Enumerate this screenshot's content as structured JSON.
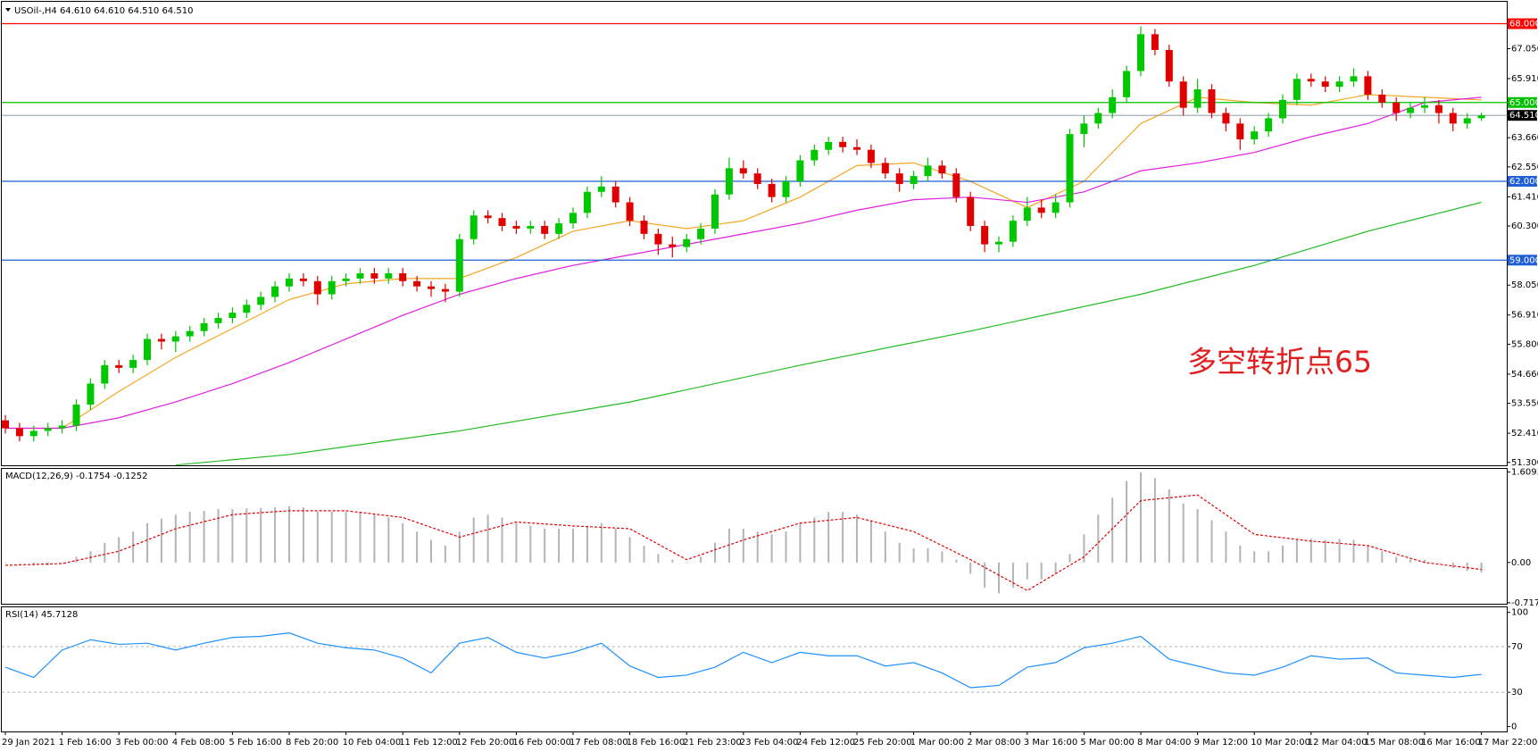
{
  "chart_data": [
    {
      "type": "candlestick",
      "title": "USOil-,H4  64.610 64.610 64.510 64.510",
      "annotation": "多空转折点65",
      "up_color": "#00c800",
      "down_color": "#e00000",
      "categories": [
        "29 Jan 2021",
        null,
        null,
        null,
        "1 Feb 16:00",
        null,
        null,
        null,
        "3 Feb 00:00",
        null,
        null,
        null,
        "4 Feb 08:00",
        null,
        null,
        null,
        "5 Feb 16:00",
        null,
        null,
        null,
        "8 Feb 20:00",
        null,
        null,
        null,
        "10 Feb 04:00",
        null,
        null,
        null,
        "11 Feb 12:00",
        null,
        null,
        null,
        "12 Feb 20:00",
        null,
        null,
        null,
        "16 Feb 00:00",
        null,
        null,
        null,
        "17 Feb 08:00",
        null,
        null,
        null,
        "18 Feb 16:00",
        null,
        null,
        null,
        "21 Feb 23:00",
        null,
        null,
        null,
        "23 Feb 04:00",
        null,
        null,
        null,
        "24 Feb 12:00",
        null,
        null,
        null,
        "25 Feb 20:00",
        null,
        null,
        null,
        "1 Mar 00:00",
        null,
        null,
        null,
        "2 Mar 08:00",
        null,
        null,
        null,
        "3 Mar 16:00",
        null,
        null,
        null,
        "5 Mar 00:00",
        null,
        null,
        null,
        "8 Mar 04:00",
        null,
        null,
        null,
        "9 Mar 12:00",
        null,
        null,
        null,
        "10 Mar 20:00",
        null,
        null,
        null,
        "12 Mar 04:00",
        null,
        null,
        null,
        "15 Mar 08:00",
        null,
        null,
        null,
        "16 Mar 16:00",
        null,
        null,
        null,
        "17 Mar 22:00"
      ],
      "ohlc": [
        [
          52.9,
          53.1,
          52.4,
          52.6
        ],
        [
          52.6,
          52.8,
          52.1,
          52.3
        ],
        [
          52.3,
          52.7,
          52.1,
          52.5
        ],
        [
          52.5,
          52.8,
          52.3,
          52.6
        ],
        [
          52.6,
          52.9,
          52.4,
          52.7
        ],
        [
          52.7,
          53.7,
          52.5,
          53.5
        ],
        [
          53.5,
          54.5,
          53.3,
          54.3
        ],
        [
          54.3,
          55.2,
          54.1,
          55.0
        ],
        [
          55.0,
          55.2,
          54.7,
          54.9
        ],
        [
          54.9,
          55.4,
          54.7,
          55.2
        ],
        [
          55.2,
          56.2,
          55.0,
          56.0
        ],
        [
          56.0,
          56.2,
          55.6,
          55.9
        ],
        [
          55.9,
          56.3,
          55.5,
          56.1
        ],
        [
          56.1,
          56.5,
          55.9,
          56.3
        ],
        [
          56.3,
          56.8,
          56.1,
          56.6
        ],
        [
          56.6,
          57.0,
          56.4,
          56.8
        ],
        [
          56.8,
          57.2,
          56.6,
          57.0
        ],
        [
          57.0,
          57.5,
          56.8,
          57.3
        ],
        [
          57.3,
          57.8,
          57.1,
          57.6
        ],
        [
          57.6,
          58.2,
          57.4,
          58.0
        ],
        [
          58.0,
          58.5,
          57.8,
          58.3
        ],
        [
          58.3,
          58.5,
          58.0,
          58.2
        ],
        [
          58.2,
          58.4,
          57.3,
          57.7
        ],
        [
          57.7,
          58.4,
          57.5,
          58.2
        ],
        [
          58.2,
          58.5,
          58.0,
          58.3
        ],
        [
          58.3,
          58.7,
          58.1,
          58.5
        ],
        [
          58.5,
          58.7,
          58.1,
          58.3
        ],
        [
          58.3,
          58.7,
          58.1,
          58.5
        ],
        [
          58.5,
          58.7,
          58.0,
          58.2
        ],
        [
          58.2,
          58.4,
          57.8,
          58.0
        ],
        [
          58.0,
          58.2,
          57.6,
          57.9
        ],
        [
          57.9,
          58.1,
          57.4,
          57.8
        ],
        [
          57.8,
          60.0,
          57.6,
          59.8
        ],
        [
          59.8,
          60.9,
          59.6,
          60.7
        ],
        [
          60.7,
          60.9,
          60.4,
          60.6
        ],
        [
          60.6,
          60.8,
          60.1,
          60.3
        ],
        [
          60.3,
          60.5,
          60.0,
          60.2
        ],
        [
          60.2,
          60.5,
          60.0,
          60.3
        ],
        [
          60.3,
          60.5,
          59.8,
          60.0
        ],
        [
          60.0,
          60.6,
          59.8,
          60.4
        ],
        [
          60.4,
          61.0,
          60.2,
          60.8
        ],
        [
          60.8,
          61.8,
          60.6,
          61.6
        ],
        [
          61.6,
          62.2,
          61.4,
          61.8
        ],
        [
          61.8,
          62.0,
          61.0,
          61.2
        ],
        [
          61.2,
          61.4,
          60.3,
          60.5
        ],
        [
          60.5,
          60.7,
          59.8,
          60.0
        ],
        [
          60.0,
          60.2,
          59.2,
          59.6
        ],
        [
          59.6,
          59.9,
          59.1,
          59.5
        ],
        [
          59.5,
          60.0,
          59.3,
          59.8
        ],
        [
          59.8,
          60.4,
          59.6,
          60.2
        ],
        [
          60.2,
          61.7,
          60.0,
          61.5
        ],
        [
          61.5,
          62.9,
          61.3,
          62.5
        ],
        [
          62.5,
          62.8,
          62.1,
          62.3
        ],
        [
          62.3,
          62.5,
          61.7,
          61.9
        ],
        [
          61.9,
          62.1,
          61.2,
          61.4
        ],
        [
          61.4,
          62.2,
          61.2,
          62.0
        ],
        [
          62.0,
          63.0,
          61.8,
          62.8
        ],
        [
          62.8,
          63.4,
          62.6,
          63.2
        ],
        [
          63.2,
          63.7,
          63.0,
          63.5
        ],
        [
          63.5,
          63.7,
          63.1,
          63.3
        ],
        [
          63.3,
          63.6,
          63.0,
          63.2
        ],
        [
          63.2,
          63.4,
          62.5,
          62.7
        ],
        [
          62.7,
          62.9,
          62.1,
          62.3
        ],
        [
          62.3,
          62.5,
          61.6,
          61.9
        ],
        [
          61.9,
          62.4,
          61.7,
          62.2
        ],
        [
          62.2,
          62.9,
          62.0,
          62.6
        ],
        [
          62.6,
          62.8,
          62.1,
          62.3
        ],
        [
          62.3,
          62.5,
          61.2,
          61.4
        ],
        [
          61.4,
          61.6,
          60.1,
          60.3
        ],
        [
          60.3,
          60.5,
          59.3,
          59.6
        ],
        [
          59.6,
          59.9,
          59.3,
          59.7
        ],
        [
          59.7,
          60.7,
          59.5,
          60.5
        ],
        [
          60.5,
          61.4,
          60.3,
          61.0
        ],
        [
          61.0,
          61.3,
          60.6,
          60.8
        ],
        [
          60.8,
          61.5,
          60.6,
          61.2
        ],
        [
          61.2,
          64.0,
          61.0,
          63.8
        ],
        [
          63.8,
          64.5,
          63.3,
          64.2
        ],
        [
          64.2,
          64.8,
          64.0,
          64.6
        ],
        [
          64.6,
          65.5,
          64.4,
          65.2
        ],
        [
          65.2,
          66.4,
          65.0,
          66.2
        ],
        [
          66.2,
          67.9,
          66.0,
          67.6
        ],
        [
          67.6,
          67.8,
          66.8,
          67.0
        ],
        [
          67.0,
          67.2,
          65.6,
          65.8
        ],
        [
          65.8,
          66.0,
          64.5,
          64.8
        ],
        [
          64.8,
          65.9,
          64.6,
          65.5
        ],
        [
          65.5,
          65.7,
          64.4,
          64.6
        ],
        [
          64.6,
          64.8,
          63.9,
          64.2
        ],
        [
          64.2,
          64.4,
          63.2,
          63.6
        ],
        [
          63.6,
          64.1,
          63.4,
          63.9
        ],
        [
          63.9,
          64.6,
          63.7,
          64.4
        ],
        [
          64.4,
          65.3,
          64.2,
          65.1
        ],
        [
          65.1,
          66.1,
          64.9,
          65.9
        ],
        [
          65.9,
          66.1,
          65.6,
          65.8
        ],
        [
          65.8,
          66.0,
          65.4,
          65.6
        ],
        [
          65.6,
          66.0,
          65.4,
          65.8
        ],
        [
          65.8,
          66.3,
          65.6,
          66.0
        ],
        [
          66.0,
          66.2,
          65.1,
          65.3
        ],
        [
          65.3,
          65.5,
          64.8,
          65.0
        ],
        [
          65.0,
          65.2,
          64.3,
          64.6
        ],
        [
          64.6,
          65.0,
          64.4,
          64.8
        ],
        [
          64.8,
          65.2,
          64.6,
          64.9
        ],
        [
          64.9,
          65.1,
          64.2,
          64.6
        ],
        [
          64.6,
          64.8,
          63.9,
          64.2
        ],
        [
          64.2,
          64.6,
          64.0,
          64.4
        ],
        [
          64.4,
          64.61,
          64.3,
          64.51
        ]
      ],
      "lines": [
        {
          "color": "#f5a623",
          "x": [
            0,
            4,
            8,
            12,
            16,
            20,
            24,
            28,
            32,
            36,
            40,
            44,
            48,
            52,
            56,
            60,
            64,
            68,
            72,
            76,
            80,
            84,
            88,
            92,
            96,
            100,
            104
          ],
          "values": [
            52.6,
            52.6,
            54.0,
            55.3,
            56.4,
            57.5,
            58.1,
            58.3,
            58.3,
            59.1,
            60.1,
            60.5,
            60.2,
            60.5,
            61.4,
            62.6,
            62.7,
            62.0,
            61.0,
            62.0,
            64.2,
            65.2,
            65.0,
            64.9,
            65.3,
            65.2,
            65.1
          ]
        },
        {
          "color": "#e020e0",
          "x": [
            0,
            4,
            8,
            12,
            16,
            20,
            24,
            28,
            32,
            36,
            40,
            44,
            48,
            52,
            56,
            60,
            64,
            68,
            72,
            76,
            80,
            84,
            88,
            92,
            96,
            100,
            104
          ],
          "values": [
            52.6,
            52.6,
            53.0,
            53.6,
            54.3,
            55.1,
            56.0,
            56.9,
            57.7,
            58.3,
            58.8,
            59.2,
            59.6,
            60.0,
            60.4,
            60.9,
            61.3,
            61.4,
            61.2,
            61.6,
            62.4,
            62.7,
            63.1,
            63.7,
            64.2,
            65.0,
            65.2
          ]
        },
        {
          "color": "#22bb22",
          "x": [
            12,
            20,
            32,
            44,
            56,
            68,
            80,
            88,
            96,
            104
          ],
          "values": [
            51.2,
            51.6,
            52.5,
            53.6,
            55.0,
            56.3,
            57.7,
            58.8,
            60.1,
            61.2
          ]
        }
      ],
      "levels": [
        {
          "value": 68,
          "label": "68.000",
          "color": "#ff0000"
        },
        {
          "value": 65,
          "label": "65.000",
          "color": "#00c000"
        },
        {
          "value": 62,
          "label": "62.000",
          "color": "#1f5fd6"
        },
        {
          "value": 59,
          "label": "59.000",
          "color": "#1f5fd6"
        }
      ],
      "last": {
        "value": 64.51,
        "label": "64.510"
      },
      "ylim": [
        51.19,
        68.8
      ],
      "yticks": [
        {
          "value": 67.05,
          "label": "67.050"
        },
        {
          "value": 65.91,
          "label": "65.910"
        },
        {
          "value": 63.66,
          "label": "63.660"
        },
        {
          "value": 62.55,
          "label": "62.550"
        },
        {
          "value": 61.41,
          "label": "61.410"
        },
        {
          "value": 60.3,
          "label": "60.300"
        },
        {
          "value": 58.05,
          "label": "58.050"
        },
        {
          "value": 56.91,
          "label": "56.910"
        },
        {
          "value": 55.8,
          "label": "55.800"
        },
        {
          "value": 54.66,
          "label": "54.660"
        },
        {
          "value": 53.55,
          "label": "53.550"
        },
        {
          "value": 52.41,
          "label": "52.410"
        },
        {
          "value": 51.3,
          "label": "51.300"
        }
      ]
    },
    {
      "type": "macd",
      "title": "MACD(12,26,9) -0.1754 -0.1252",
      "histogram_color": "#b4b4b4",
      "signal_color": "#e00000",
      "values": [
        0.0,
        0.0,
        -0.05,
        -0.05,
        0.0,
        0.1,
        0.2,
        0.35,
        0.45,
        0.55,
        0.7,
        0.78,
        0.85,
        0.9,
        0.92,
        0.95,
        0.95,
        0.96,
        0.97,
        0.98,
        1.0,
        0.98,
        0.9,
        0.9,
        0.9,
        0.9,
        0.85,
        0.8,
        0.7,
        0.55,
        0.4,
        0.3,
        0.55,
        0.8,
        0.85,
        0.8,
        0.7,
        0.65,
        0.6,
        0.6,
        0.6,
        0.65,
        0.7,
        0.6,
        0.45,
        0.3,
        0.15,
        0.05,
        0.0,
        0.1,
        0.35,
        0.6,
        0.6,
        0.55,
        0.5,
        0.55,
        0.7,
        0.8,
        0.9,
        0.9,
        0.85,
        0.75,
        0.55,
        0.35,
        0.25,
        0.25,
        0.2,
        0.05,
        -0.2,
        -0.45,
        -0.55,
        -0.45,
        -0.3,
        -0.3,
        -0.2,
        0.15,
        0.5,
        0.85,
        1.15,
        1.45,
        1.6,
        1.5,
        1.3,
        1.05,
        0.95,
        0.75,
        0.55,
        0.3,
        0.2,
        0.2,
        0.3,
        0.42,
        0.42,
        0.4,
        0.42,
        0.4,
        0.3,
        0.2,
        0.1,
        0.05,
        0.05,
        0.0,
        -0.1,
        -0.15,
        -0.1754
      ],
      "signal_x": [
        0,
        4,
        8,
        12,
        16,
        20,
        24,
        28,
        32,
        36,
        40,
        44,
        48,
        52,
        56,
        60,
        64,
        68,
        72,
        76,
        80,
        84,
        88,
        92,
        96,
        100,
        104
      ],
      "signal": [
        -0.05,
        -0.02,
        0.2,
        0.6,
        0.85,
        0.92,
        0.92,
        0.8,
        0.45,
        0.72,
        0.65,
        0.6,
        0.05,
        0.4,
        0.7,
        0.8,
        0.55,
        0.05,
        -0.5,
        0.1,
        1.1,
        1.2,
        0.5,
        0.38,
        0.3,
        0.0,
        -0.1252
      ],
      "ylim": [
        -0.734,
        1.68
      ],
      "yticks": [
        1.6093,
        {
          "value": 0,
          "label": "0.00"
        },
        -0.7172
      ]
    },
    {
      "type": "line",
      "title": "RSI(14) 45.7128",
      "color": "#1e90ff",
      "x": [
        0,
        2,
        4,
        6,
        8,
        10,
        12,
        14,
        16,
        18,
        20,
        22,
        24,
        26,
        28,
        30,
        32,
        34,
        36,
        38,
        40,
        42,
        44,
        46,
        48,
        50,
        52,
        54,
        56,
        58,
        60,
        62,
        64,
        66,
        68,
        70,
        72,
        74,
        76,
        78,
        80,
        82,
        84,
        86,
        88,
        90,
        92,
        94,
        96,
        98,
        100,
        102,
        104
      ],
      "values": [
        52,
        43,
        67,
        76,
        72,
        73,
        67,
        73,
        78,
        79,
        82,
        73,
        69,
        67,
        60,
        47,
        73,
        78,
        65,
        60,
        65,
        73,
        53,
        43,
        45,
        52,
        65,
        56,
        65,
        62,
        62,
        53,
        56,
        47,
        34,
        36,
        52,
        56,
        69,
        73,
        79,
        59,
        53,
        47,
        45,
        52,
        62,
        59,
        60,
        47,
        45,
        43,
        45.7128
      ],
      "levels": [
        70,
        30
      ],
      "ylim": [
        -4.3,
        105.2
      ],
      "yticks": [
        100,
        70,
        30,
        0
      ]
    }
  ]
}
